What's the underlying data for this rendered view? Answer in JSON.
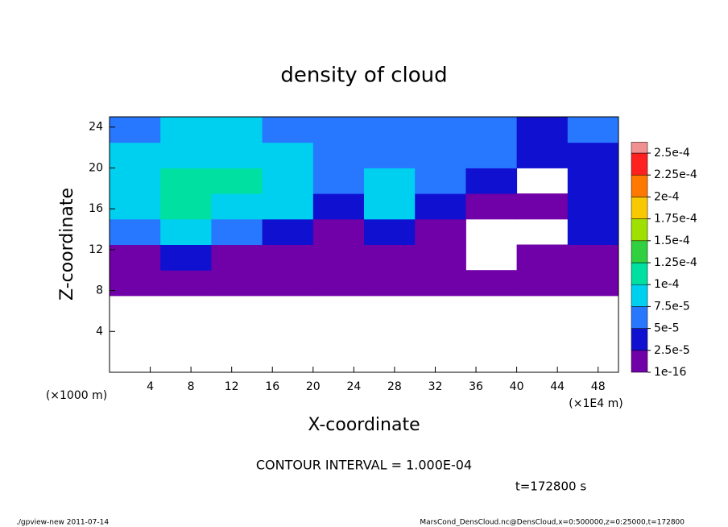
{
  "chart_data": {
    "type": "heatmap",
    "title": "density of cloud",
    "x_label": "X-coordinate",
    "y_label": "Z-coordinate",
    "y_unit": "(×1000 m)",
    "x_unit": "(×1E4 m)",
    "contour_note": "CONTOUR INTERVAL = 1.000E-04",
    "time_note": "t=172800 s",
    "footer_left": "./gpview-new  2011-07-14",
    "footer_right": "MarsCond_DensCloud.nc@DensCloud,x=0:500000,z=0:25000,t=172800",
    "xlim": [
      0,
      50
    ],
    "ylim": [
      0,
      25
    ],
    "xticks": [
      4,
      8,
      12,
      16,
      20,
      24,
      28,
      32,
      36,
      40,
      44,
      48
    ],
    "yticks": [
      4,
      8,
      12,
      16,
      20,
      24
    ],
    "colorbar": {
      "levels": [
        {
          "value": 1e-16,
          "label": "1e-16"
        },
        {
          "value": 2.5e-05,
          "label": "2.5e-5"
        },
        {
          "value": 5e-05,
          "label": "5e-5"
        },
        {
          "value": 7.5e-05,
          "label": "7.5e-5"
        },
        {
          "value": 0.0001,
          "label": "1e-4"
        },
        {
          "value": 0.000125,
          "label": "1.25e-4"
        },
        {
          "value": 0.00015,
          "label": "1.5e-4"
        },
        {
          "value": 0.000175,
          "label": "1.75e-4"
        },
        {
          "value": 0.0002,
          "label": "2e-4"
        },
        {
          "value": 0.000225,
          "label": "2.25e-4"
        },
        {
          "value": 0.00025,
          "label": "2.5e-4"
        }
      ],
      "colors": [
        "#7000a8",
        "#1010d0",
        "#2878ff",
        "#00d0f0",
        "#00e0a0",
        "#30d040",
        "#a0e000",
        "#f8c800",
        "#ff7800",
        "#ff2020",
        "#f09090"
      ]
    },
    "field": {
      "x_bins": [
        0,
        5,
        10,
        15,
        20,
        25,
        30,
        35,
        40,
        45,
        50
      ],
      "z_bins": [
        7.5,
        10,
        12.5,
        15,
        17.5,
        20,
        22.5,
        25
      ],
      "values": [
        [
          1e-05,
          1e-05,
          1e-05,
          1e-05,
          1e-05,
          1e-05,
          1e-05,
          1e-05,
          1e-05,
          1e-05
        ],
        [
          1e-05,
          3e-05,
          1e-05,
          1e-05,
          1e-05,
          1e-05,
          1e-05,
          null,
          1e-05,
          1e-05
        ],
        [
          6e-05,
          8e-05,
          6e-05,
          4e-05,
          1e-05,
          3e-05,
          1e-05,
          null,
          null,
          3e-05
        ],
        [
          9e-05,
          0.00011,
          9e-05,
          8e-05,
          3e-05,
          8e-05,
          3e-05,
          1e-05,
          1e-05,
          3e-05
        ],
        [
          9e-05,
          0.00011,
          0.00011,
          9e-05,
          6e-05,
          8e-05,
          6e-05,
          3e-05,
          null,
          4e-05
        ],
        [
          8e-05,
          9e-05,
          9e-05,
          8e-05,
          6e-05,
          7e-05,
          7e-05,
          6e-05,
          4e-05,
          4e-05
        ],
        [
          7e-05,
          8e-05,
          8e-05,
          7e-05,
          5e-05,
          7e-05,
          7e-05,
          6e-05,
          4e-05,
          5e-05
        ]
      ]
    }
  }
}
